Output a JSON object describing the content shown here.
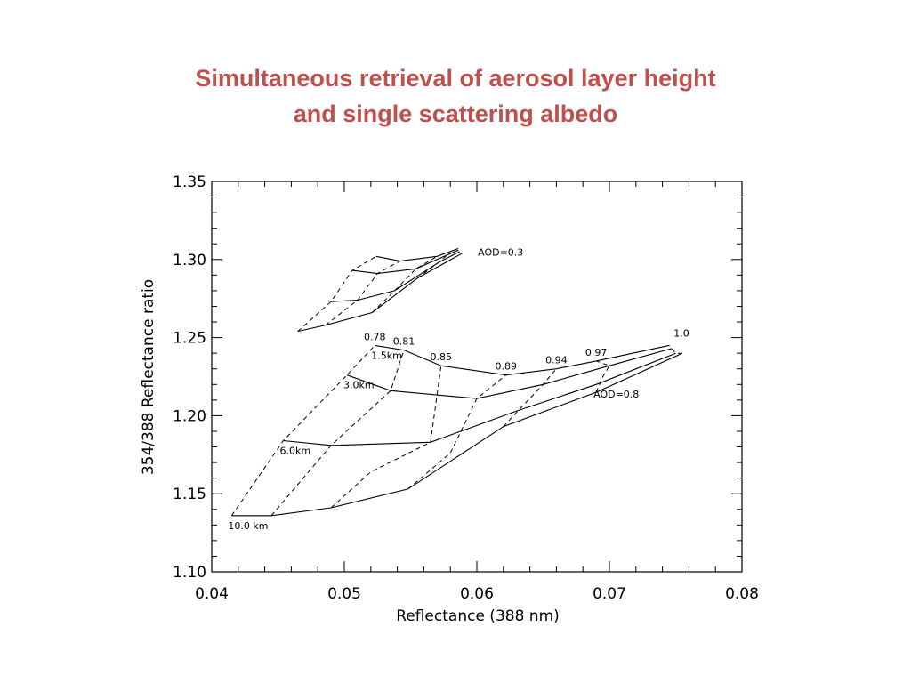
{
  "slide": {
    "title_line1": "Simultaneous retrieval of aerosol layer height",
    "title_line2": "and single scattering albedo"
  },
  "chart_data": {
    "type": "line",
    "xlabel": "Reflectance (388 nm)",
    "ylabel": "354/388 Reflectance ratio",
    "xlim": [
      0.04,
      0.08
    ],
    "ylim": [
      1.1,
      1.35
    ],
    "xticks": [
      "0.04",
      "0.05",
      "0.06",
      "0.07",
      "0.08"
    ],
    "yticks": [
      "1.10",
      "1.15",
      "1.20",
      "1.25",
      "1.30",
      "1.35"
    ],
    "grid": false,
    "groups": [
      {
        "aod_label": "AOD=0.3",
        "height_lines": [
          {
            "label": "",
            "x": [
              0.0524,
              0.0542,
              0.057,
              0.0586
            ],
            "y": [
              1.302,
              1.299,
              1.302,
              1.307
            ]
          },
          {
            "label": "",
            "x": [
              0.0506,
              0.0525,
              0.0554,
              0.0578,
              0.0586
            ],
            "y": [
              1.293,
              1.291,
              1.294,
              1.303,
              1.306
            ]
          },
          {
            "label": "",
            "x": [
              0.049,
              0.051,
              0.0538,
              0.0571,
              0.0587
            ],
            "y": [
              1.273,
              1.274,
              1.28,
              1.298,
              1.305
            ]
          },
          {
            "label": "",
            "x": [
              0.0465,
              0.0486,
              0.0521,
              0.0555,
              0.0589
            ],
            "y": [
              1.254,
              1.258,
              1.266,
              1.288,
              1.304
            ]
          }
        ],
        "ssa_lines": [
          {
            "label": "",
            "x": [
              0.0465,
              0.049,
              0.0506,
              0.0524
            ],
            "y": [
              1.254,
              1.273,
              1.293,
              1.302
            ]
          },
          {
            "label": "",
            "x": [
              0.0486,
              0.051,
              0.0525,
              0.0542
            ],
            "y": [
              1.258,
              1.274,
              1.291,
              1.299
            ]
          },
          {
            "label": "",
            "x": [
              0.0521,
              0.0538,
              0.0554,
              0.057
            ],
            "y": [
              1.266,
              1.28,
              1.294,
              1.302
            ]
          },
          {
            "label": "",
            "x": [
              0.0555,
              0.0571,
              0.0578,
              0.0586
            ],
            "y": [
              1.288,
              1.298,
              1.303,
              1.306
            ]
          }
        ]
      },
      {
        "aod_label": "AOD=0.8",
        "height_lines": [
          {
            "label": "1.5km",
            "x": [
              0.0523,
              0.0545,
              0.0573,
              0.0622,
              0.066,
              0.069,
              0.0745
            ],
            "y": [
              1.245,
              1.242,
              1.232,
              1.226,
              1.23,
              1.235,
              1.245
            ]
          },
          {
            "label": "3.0km",
            "x": [
              0.0502,
              0.0535,
              0.06,
              0.065,
              0.07,
              0.0747
            ],
            "y": [
              1.226,
              1.216,
              1.211,
              1.22,
              1.232,
              1.243
            ]
          },
          {
            "label": "6.0km",
            "x": [
              0.0454,
              0.049,
              0.0565,
              0.063,
              0.069,
              0.075
            ],
            "y": [
              1.184,
              1.181,
              1.183,
              1.203,
              1.22,
              1.24
            ]
          },
          {
            "label": "10.0 km",
            "x": [
              0.0415,
              0.0445,
              0.049,
              0.0548,
              0.062,
              0.069,
              0.0755
            ],
            "y": [
              1.136,
              1.136,
              1.141,
              1.153,
              1.193,
              1.215,
              1.24
            ]
          }
        ],
        "ssa_lines": [
          {
            "label": "0.78",
            "x": [
              0.0415,
              0.0454,
              0.0502,
              0.0523
            ],
            "y": [
              1.136,
              1.184,
              1.226,
              1.245
            ]
          },
          {
            "label": "0.81",
            "x": [
              0.0445,
              0.049,
              0.0535,
              0.0545
            ],
            "y": [
              1.136,
              1.181,
              1.216,
              1.242
            ]
          },
          {
            "label": "0.85",
            "x": [
              0.049,
              0.052,
              0.0565,
              0.0573
            ],
            "y": [
              1.141,
              1.164,
              1.183,
              1.232
            ]
          },
          {
            "label": "0.89",
            "x": [
              0.0548,
              0.058,
              0.06,
              0.0622
            ],
            "y": [
              1.153,
              1.176,
              1.211,
              1.226
            ]
          },
          {
            "label": "0.94",
            "x": [
              0.062,
              0.0632,
              0.065,
              0.066
            ],
            "y": [
              1.193,
              1.204,
              1.22,
              1.23
            ]
          },
          {
            "label": "0.97",
            "x": [
              0.069,
              0.0695,
              0.07,
              0.069
            ],
            "y": [
              1.215,
              1.225,
              1.232,
              1.235
            ]
          },
          {
            "label": "1.0",
            "x": [
              0.0755,
              0.075,
              0.0747,
              0.0745
            ],
            "y": [
              1.24,
              1.24,
              1.243,
              1.245
            ]
          }
        ]
      }
    ]
  }
}
